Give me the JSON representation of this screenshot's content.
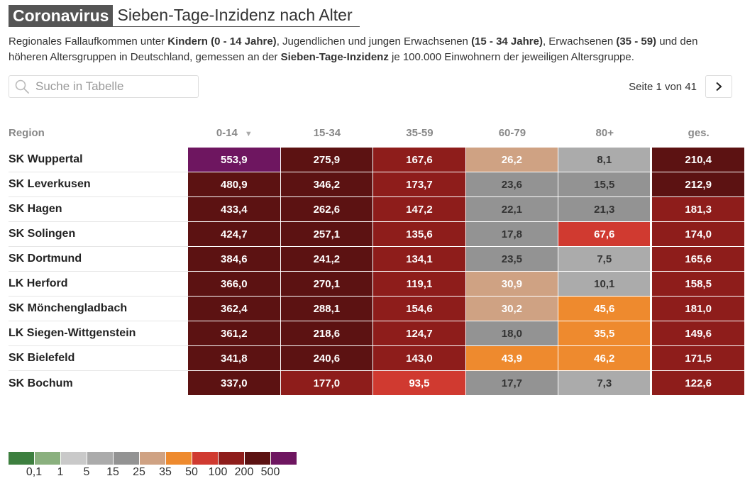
{
  "header": {
    "kicker": "Coronavirus",
    "title": "Sieben-Tage-Inzidenz nach Alter"
  },
  "intro": {
    "p1": "Regionales Fallaufkommen unter ",
    "b1": "Kindern (0 - 14 Jahre)",
    "p2": ", Jugendlichen und jungen Erwachsenen ",
    "b2": "(15 - 34 Jahre)",
    "p3": ", Erwachsenen ",
    "b3": "(35 - 59)",
    "p4": " und den höheren Altersgruppen in Deutschland, gemessen an der ",
    "b4": "Sieben-Tage-Inzidenz",
    "p5": " je 100.000 Einwohnern der jeweiligen Altersgruppe."
  },
  "search": {
    "placeholder": "Suche in Tabelle",
    "value": ""
  },
  "pager": {
    "text": "Seite 1 von 41"
  },
  "table": {
    "columns": [
      "Region",
      "0-14",
      "15-34",
      "35-59",
      "60-79",
      "80+",
      "ges."
    ],
    "sort_indicator": "▼",
    "rows": [
      {
        "region": "SK Wuppertal",
        "values": [
          "553,9",
          "275,9",
          "167,6",
          "26,2",
          "8,1",
          "210,4"
        ]
      },
      {
        "region": "SK Leverkusen",
        "values": [
          "480,9",
          "346,2",
          "173,7",
          "23,6",
          "15,5",
          "212,9"
        ]
      },
      {
        "region": "SK Hagen",
        "values": [
          "433,4",
          "262,6",
          "147,2",
          "22,1",
          "21,3",
          "181,3"
        ]
      },
      {
        "region": "SK Solingen",
        "values": [
          "424,7",
          "257,1",
          "135,6",
          "17,8",
          "67,6",
          "174,0"
        ]
      },
      {
        "region": "SK Dortmund",
        "values": [
          "384,6",
          "241,2",
          "134,1",
          "23,5",
          "7,5",
          "165,6"
        ]
      },
      {
        "region": "LK Herford",
        "values": [
          "366,0",
          "270,1",
          "119,1",
          "30,9",
          "10,1",
          "158,5"
        ]
      },
      {
        "region": "SK Mönchengladbach",
        "values": [
          "362,4",
          "288,1",
          "154,6",
          "30,2",
          "45,6",
          "181,0"
        ]
      },
      {
        "region": "LK Siegen-Wittgenstein",
        "values": [
          "361,2",
          "218,6",
          "124,7",
          "18,0",
          "35,5",
          "149,6"
        ]
      },
      {
        "region": "SK Bielefeld",
        "values": [
          "341,8",
          "240,6",
          "143,0",
          "43,9",
          "46,2",
          "171,5"
        ]
      },
      {
        "region": "SK Bochum",
        "values": [
          "337,0",
          "177,0",
          "93,5",
          "17,7",
          "7,3",
          "122,6"
        ]
      }
    ]
  },
  "legend": {
    "colors": [
      "#3d7f3f",
      "#8ab07e",
      "#c9c9c9",
      "#ababab",
      "#939393",
      "#cfa283",
      "#ee8a2e",
      "#d03a30",
      "#8e1d1b",
      "#5c1212",
      "#6e1660"
    ],
    "thresholds": [
      0.1,
      1,
      5,
      15,
      25,
      35,
      50,
      100,
      200,
      500
    ],
    "labels": [
      "0,1",
      "1",
      "5",
      "15",
      "25",
      "35",
      "50",
      "100",
      "200",
      "500"
    ]
  }
}
